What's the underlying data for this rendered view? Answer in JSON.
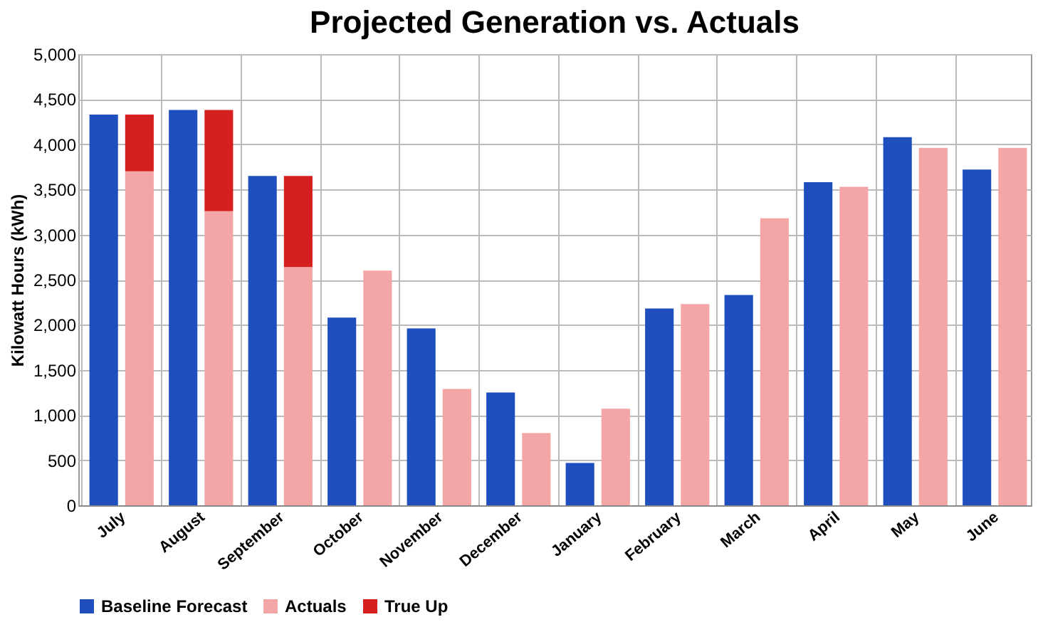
{
  "chart_data": {
    "type": "bar",
    "title": "Projected Generation vs. Actuals",
    "ylabel": "Kilowatt Hours (kWh)",
    "categories": [
      "July",
      "August",
      "September",
      "October",
      "November",
      "December",
      "January",
      "February",
      "March",
      "April",
      "May",
      "June"
    ],
    "series": [
      {
        "name": "Baseline Forecast",
        "color": "#1f4fbf",
        "values": [
          4330,
          4380,
          3650,
          2080,
          1960,
          1250,
          470,
          2180,
          2330,
          3580,
          4080,
          3720
        ]
      },
      {
        "name": "Actuals",
        "color": "#f4a6a6",
        "values": [
          3700,
          3260,
          2640,
          2600,
          1290,
          800,
          1070,
          2230,
          3180,
          3530,
          3960,
          3960
        ]
      },
      {
        "name": "True Up",
        "color": "#d62020",
        "base": [
          3700,
          3260,
          2640,
          null,
          null,
          null,
          null,
          null,
          null,
          null,
          null,
          null
        ],
        "values": [
          630,
          1120,
          1010,
          null,
          null,
          null,
          null,
          null,
          null,
          null,
          null,
          null
        ]
      }
    ],
    "ylim": [
      0,
      5000
    ],
    "yticks": [
      {
        "value": 0,
        "label": "0"
      },
      {
        "value": 500,
        "label": "500"
      },
      {
        "value": 1000,
        "label": "1,000"
      },
      {
        "value": 1500,
        "label": "1,500"
      },
      {
        "value": 2000,
        "label": "2,000"
      },
      {
        "value": 2500,
        "label": "2,500"
      },
      {
        "value": 3000,
        "label": "3,000"
      },
      {
        "value": 3500,
        "label": "3,500"
      },
      {
        "value": 4000,
        "label": "4,000"
      },
      {
        "value": 4500,
        "label": "4,500"
      },
      {
        "value": 5000,
        "label": "5,000"
      }
    ],
    "grid": true,
    "legend": "bottom"
  }
}
